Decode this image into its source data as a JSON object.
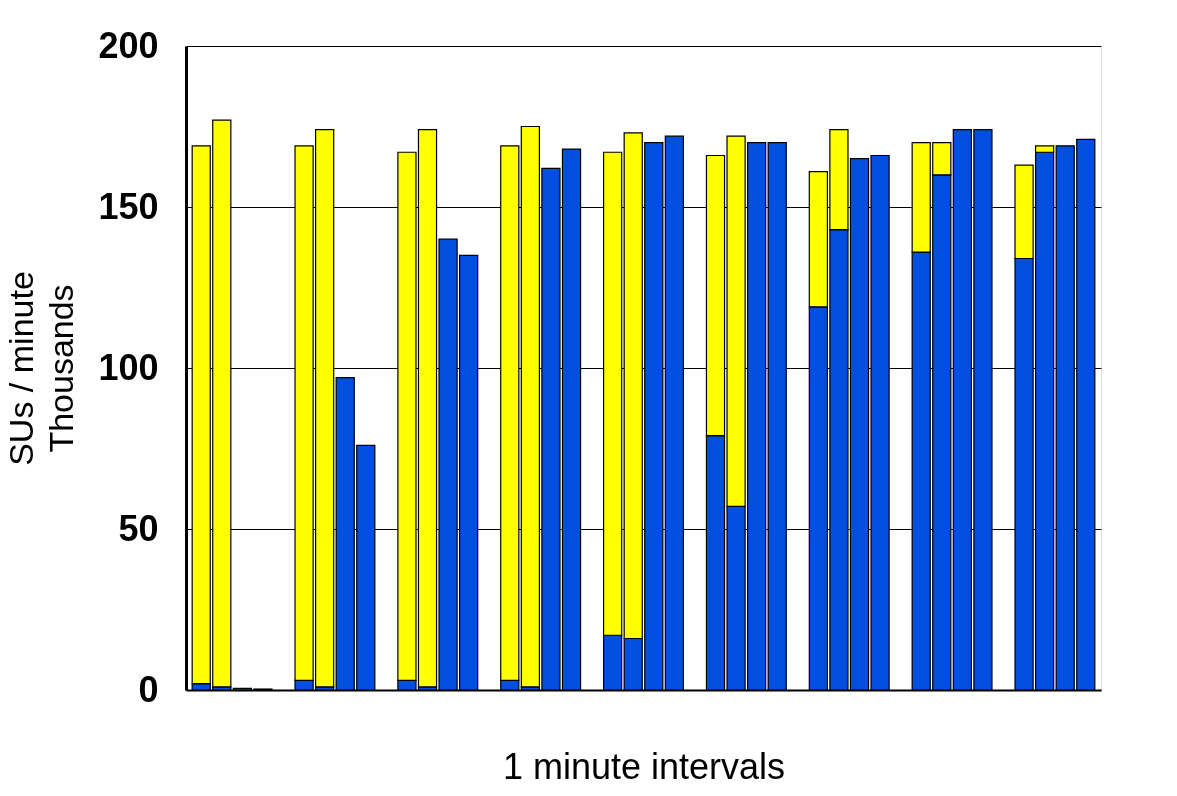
{
  "chart_data": {
    "type": "bar",
    "stacked": true,
    "xlabel": "1 minute intervals",
    "ylabel": "SUs / minute\nThousands",
    "categories": [
      null,
      null,
      null,
      null,
      null,
      null,
      null,
      null,
      null,
      null,
      null,
      null,
      null,
      null,
      null,
      null,
      null,
      null,
      null,
      null,
      null,
      null,
      null,
      null,
      null,
      null,
      null,
      null,
      null,
      null,
      null,
      null,
      null,
      null,
      null,
      null,
      null,
      null,
      null,
      null,
      null,
      null,
      null,
      null
    ],
    "series": [
      {
        "color": "#0050dd",
        "values": [
          2,
          1,
          0.5,
          0.3,
          null,
          3,
          1,
          97,
          76,
          null,
          3,
          1,
          140,
          135,
          null,
          3,
          1,
          162,
          168,
          null,
          17,
          16,
          170,
          172,
          null,
          79,
          57,
          170,
          170,
          null,
          119,
          143,
          165,
          166,
          null,
          136,
          160,
          174,
          174,
          null,
          134,
          167,
          169,
          171
        ]
      },
      {
        "color": "#ffff00",
        "values": [
          167,
          176,
          null,
          null,
          null,
          166,
          173,
          null,
          null,
          null,
          164,
          173,
          null,
          null,
          null,
          166,
          174,
          null,
          null,
          null,
          150,
          157,
          null,
          null,
          null,
          87,
          115,
          null,
          null,
          null,
          42,
          31,
          null,
          null,
          null,
          34,
          10,
          null,
          null,
          null,
          29,
          2,
          null,
          null
        ]
      }
    ],
    "ylim": [
      0,
      200
    ],
    "yticks": [
      0,
      50,
      100,
      150,
      200
    ],
    "grid": "y",
    "tick_labels": "y",
    "legend": false
  }
}
